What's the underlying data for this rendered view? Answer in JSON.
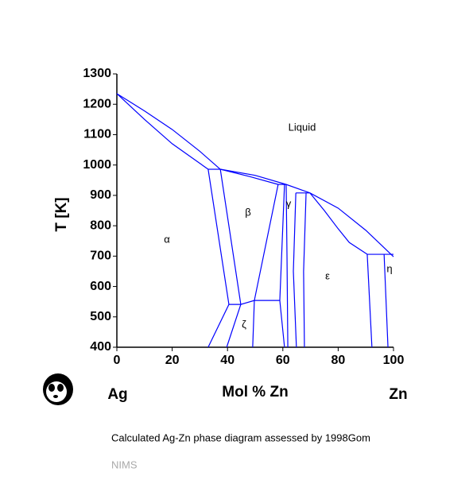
{
  "chart_data": {
    "type": "line",
    "color": "#0000ff",
    "ylabel": "T [K]",
    "xlabel": "Mol % Zn",
    "left_label": "Ag",
    "right_label": "Zn",
    "caption": "Calculated Ag-Zn phase diagram assessed by 1998Gom",
    "footer": "NIMS",
    "xlim": [
      0,
      100
    ],
    "xticks": [
      0,
      20,
      40,
      60,
      80,
      100
    ],
    "ylim": [
      400,
      1300
    ],
    "yticks": [
      400,
      500,
      600,
      700,
      800,
      900,
      1000,
      1100,
      1200,
      1300
    ],
    "annotations": [
      "Liquid",
      "α",
      "β",
      "γ",
      "ε",
      "ζ",
      "η"
    ],
    "series": [
      {
        "x": [
          0,
          10,
          20,
          30,
          37.4,
          50,
          61.2,
          69.8,
          80,
          90,
          100
        ],
        "values": [
          1235,
          1178,
          1117,
          1045,
          986,
          966,
          936,
          908,
          858,
          785,
          698
        ]
      },
      {
        "x": [
          0,
          10,
          20,
          33
        ],
        "values": [
          1235,
          1150,
          1070,
          986
        ]
      },
      {
        "x": [
          33,
          37.4
        ],
        "values": [
          986,
          986
        ]
      },
      {
        "x": [
          33,
          40.5,
          33
        ],
        "values": [
          986,
          541,
          400
        ]
      },
      {
        "x": [
          37.4,
          44.8,
          39.7
        ],
        "values": [
          986,
          541,
          400
        ]
      },
      {
        "x": [
          40.5,
          44.8,
          49.7,
          58.9
        ],
        "values": [
          541,
          541,
          554,
          554
        ]
      },
      {
        "x": [
          37.4,
          48,
          58.3
        ],
        "values": [
          986,
          962,
          936
        ]
      },
      {
        "x": [
          58.3,
          49.7,
          49.1
        ],
        "values": [
          936,
          554,
          400
        ]
      },
      {
        "x": [
          60.6,
          58.9,
          60.6
        ],
        "values": [
          936,
          554,
          400
        ]
      },
      {
        "x": [
          58.3,
          61.2
        ],
        "values": [
          936,
          936
        ]
      },
      {
        "x": [
          61.2,
          61.5,
          61.8
        ],
        "values": [
          936,
          700,
          400
        ]
      },
      {
        "x": [
          64.7,
          63.8,
          64.9
        ],
        "values": [
          908,
          650,
          400
        ]
      },
      {
        "x": [
          68.4,
          67.5,
          67.8
        ],
        "values": [
          908,
          650,
          400
        ]
      },
      {
        "x": [
          64.7,
          69.8
        ],
        "values": [
          908,
          908
        ]
      },
      {
        "x": [
          69.8,
          75,
          80,
          84,
          90.5
        ],
        "values": [
          908,
          850,
          790,
          745,
          706
        ]
      },
      {
        "x": [
          90.5,
          100
        ],
        "values": [
          706,
          706
        ]
      },
      {
        "x": [
          90.5,
          92.2
        ],
        "values": [
          706,
          400
        ]
      },
      {
        "x": [
          96.6,
          98
        ],
        "values": [
          706,
          400
        ]
      }
    ]
  }
}
